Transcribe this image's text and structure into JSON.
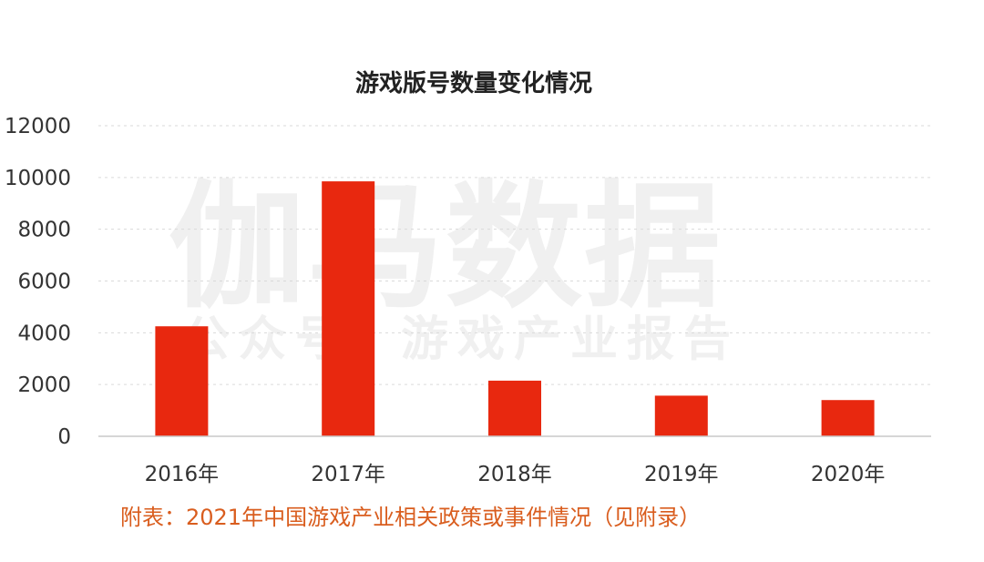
{
  "chart_data": {
    "type": "bar",
    "title": "游戏版号数量变化情况",
    "xlabel": "",
    "ylabel": "",
    "categories": [
      "2016年",
      "2017年",
      "2018年",
      "2019年",
      "2020年"
    ],
    "values": [
      4250,
      9850,
      2150,
      1570,
      1400
    ],
    "ylim": [
      0,
      12000
    ],
    "yticks": [
      "0",
      "2000",
      "4000",
      "6000",
      "8000",
      "10000",
      "12000"
    ],
    "grid": true,
    "bar_color": "#e8280f"
  },
  "watermark": {
    "main": "伽马数据",
    "sub": [
      "公众号",
      "游戏产业报告"
    ]
  },
  "footer_note": "附表：2021年中国游戏产业相关政策或事件情况（见附录）"
}
